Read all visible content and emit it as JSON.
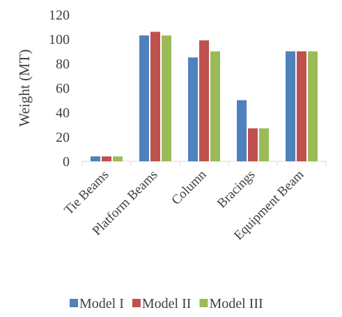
{
  "chart_data": {
    "type": "bar",
    "title": "",
    "xlabel": "",
    "ylabel": "Weight (MT)",
    "ylim": [
      0,
      120
    ],
    "yticks": [
      0,
      20,
      40,
      60,
      80,
      100,
      120
    ],
    "grid": false,
    "legend_position": "bottom",
    "categories": [
      "Tie Beams",
      "Platform Beams",
      "Column",
      "Bracings",
      "Equipment Beam"
    ],
    "series": [
      {
        "name": "Model I",
        "color": "#4f81bd",
        "values": [
          4,
          103,
          85,
          50,
          90
        ]
      },
      {
        "name": "Model II",
        "color": "#c0504d",
        "values": [
          4,
          106,
          99,
          27,
          90
        ]
      },
      {
        "name": "Model III",
        "color": "#9bbb59",
        "values": [
          4,
          103,
          90,
          27,
          90
        ]
      }
    ]
  }
}
